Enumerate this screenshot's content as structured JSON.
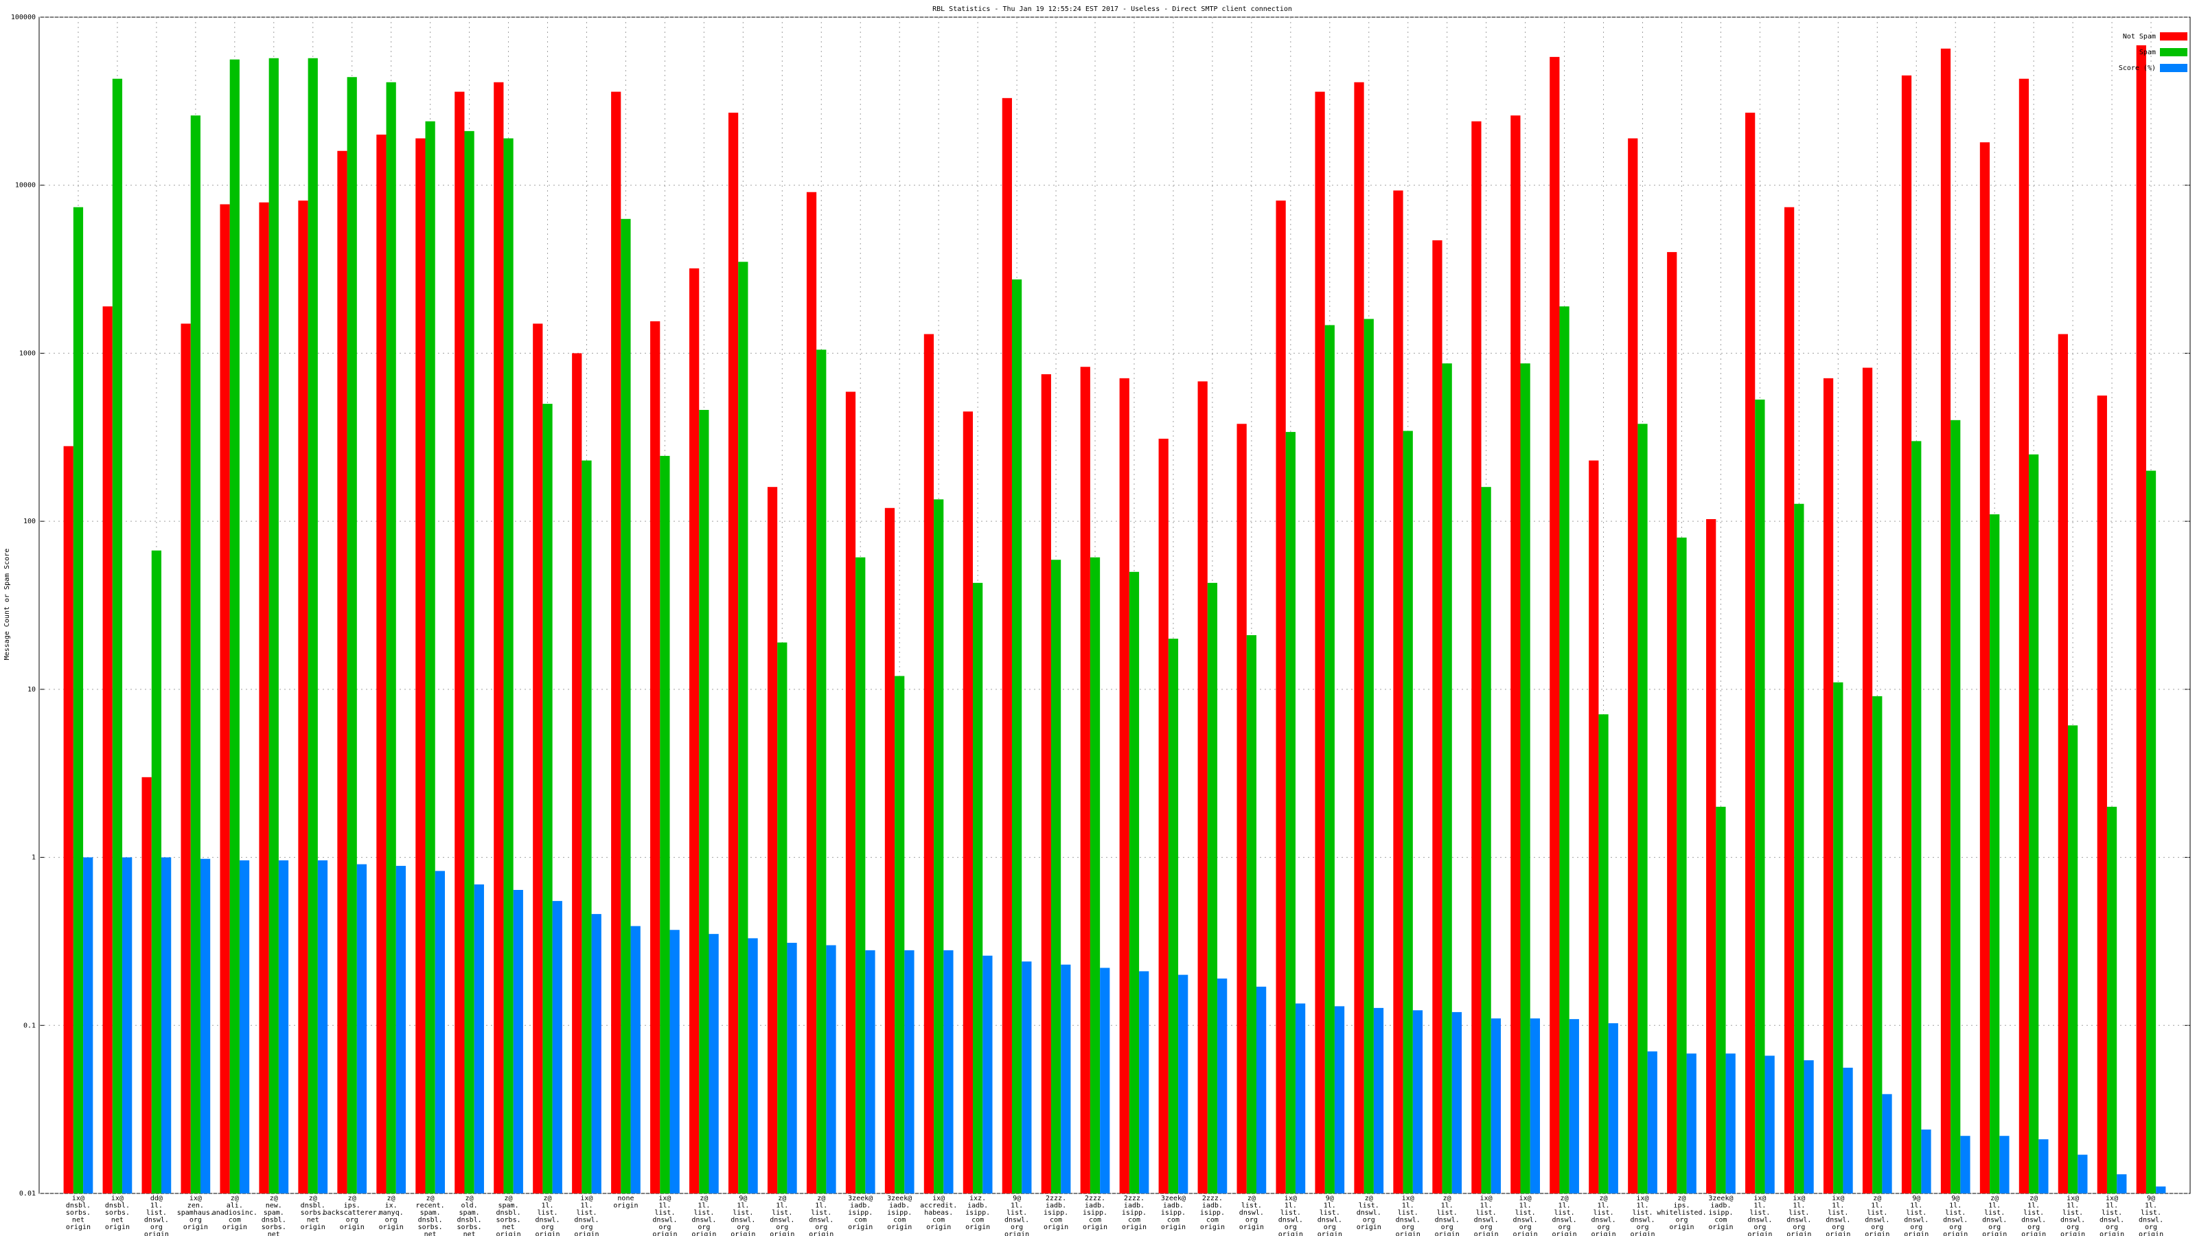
{
  "chart_data": {
    "type": "bar",
    "title": "RBL Statistics - Thu Jan 19 12:55:24 EST 2017 - Useless - Direct SMTP client connection",
    "y_label": "Message Count or Spam Score",
    "log_scale": true,
    "grid": true,
    "legend": "top-right",
    "ylim": [
      0.01,
      100000
    ],
    "yticks": [
      0.01,
      0.1,
      1,
      10,
      100,
      1000,
      10000,
      100000
    ],
    "categories": [
      [
        "ix@",
        "dnsbl.",
        "sorbs.",
        "net",
        "origin"
      ],
      [
        "ix@",
        "dnsbl.",
        "sorbs.",
        "net",
        "origin"
      ],
      [
        "dd@",
        "1l.",
        "list.",
        "dnswl.",
        "org",
        "origin"
      ],
      [
        "ix@",
        "zen.",
        "spamhaus.",
        "org",
        "origin"
      ],
      [
        "z@",
        "ali.",
        "anadiosinc.",
        "com",
        "origin"
      ],
      [
        "z@",
        "new.",
        "spam.",
        "dnsbl.",
        "sorbs.",
        "net",
        "origin"
      ],
      [
        "z@",
        "dnsbl.",
        "sorbs.",
        "net",
        "origin"
      ],
      [
        "z@",
        "ips.",
        "backscatterer.",
        "org",
        "origin"
      ],
      [
        "z@",
        "ix.",
        "manyq.",
        "org",
        "origin"
      ],
      [
        "z@",
        "recent.",
        "spam.",
        "dnsbl.",
        "sorbs.",
        "net",
        "origin"
      ],
      [
        "z@",
        "old.",
        "spam.",
        "dnsbl.",
        "sorbs.",
        "net",
        "origin"
      ],
      [
        "z@",
        "spam.",
        "dnsbl.",
        "sorbs.",
        "net",
        "origin"
      ],
      [
        "z@",
        "1l.",
        "list.",
        "dnswl.",
        "org",
        "origin"
      ],
      [
        "ix@",
        "1l.",
        "list.",
        "dnswl.",
        "org",
        "origin"
      ],
      [
        "none",
        "origin"
      ],
      [
        "ix@",
        "1l.",
        "list.",
        "dnswl.",
        "org",
        "origin"
      ],
      [
        "z@",
        "1l.",
        "list.",
        "dnswl.",
        "org",
        "origin"
      ],
      [
        "9@",
        "1l.",
        "list.",
        "dnswl.",
        "org",
        "origin"
      ],
      [
        "z@",
        "1l.",
        "list.",
        "dnswl.",
        "org",
        "origin"
      ],
      [
        "z@",
        "1l.",
        "list.",
        "dnswl.",
        "org",
        "origin"
      ],
      [
        "3zeek@",
        "iadb.",
        "isipp.",
        "com",
        "origin"
      ],
      [
        "3zeek@",
        "iadb.",
        "isipp.",
        "com",
        "origin"
      ],
      [
        "ix@",
        "accredit.",
        "habeas.",
        "com",
        "origin"
      ],
      [
        "ixz.",
        "iadb.",
        "isipp.",
        "com",
        "origin"
      ],
      [
        "9@",
        "1l.",
        "list.",
        "dnswl.",
        "org",
        "origin"
      ],
      [
        "2zzz.",
        "iadb.",
        "isipp.",
        "com",
        "origin"
      ],
      [
        "2zzz.",
        "iadb.",
        "isipp.",
        "com",
        "origin"
      ],
      [
        "2zzz.",
        "iadb.",
        "isipp.",
        "com",
        "origin"
      ],
      [
        "3zeek@",
        "iadb.",
        "isipp.",
        "com",
        "origin"
      ],
      [
        "2zzz.",
        "iadb.",
        "isipp.",
        "com",
        "origin"
      ],
      [
        "z@",
        "list.",
        "dnswl.",
        "org",
        "origin"
      ],
      [
        "ix@",
        "1l.",
        "list.",
        "dnswl.",
        "org",
        "origin"
      ],
      [
        "9@",
        "1l.",
        "list.",
        "dnswl.",
        "org",
        "origin"
      ],
      [
        "z@",
        "list.",
        "dnswl.",
        "org",
        "origin"
      ],
      [
        "ix@",
        "1l.",
        "list.",
        "dnswl.",
        "org",
        "origin"
      ],
      [
        "z@",
        "1l.",
        "list.",
        "dnswl.",
        "org",
        "origin"
      ],
      [
        "ix@",
        "1l.",
        "list.",
        "dnswl.",
        "org",
        "origin"
      ],
      [
        "ix@",
        "1l.",
        "list.",
        "dnswl.",
        "org",
        "origin"
      ],
      [
        "z@",
        "1l.",
        "list.",
        "dnswl.",
        "org",
        "origin"
      ],
      [
        "z@",
        "1l.",
        "list.",
        "dnswl.",
        "org",
        "origin"
      ],
      [
        "ix@",
        "1l.",
        "list.",
        "dnswl.",
        "org",
        "origin"
      ],
      [
        "z@",
        "ips.",
        "whitelisted.",
        "org",
        "origin"
      ],
      [
        "3zeek@",
        "iadb.",
        "isipp.",
        "com",
        "origin"
      ],
      [
        "ix@",
        "1l.",
        "list.",
        "dnswl.",
        "org",
        "origin"
      ],
      [
        "ix@",
        "1l.",
        "list.",
        "dnswl.",
        "org",
        "origin"
      ],
      [
        "ix@",
        "1l.",
        "list.",
        "dnswl.",
        "org",
        "origin"
      ],
      [
        "z@",
        "1l.",
        "list.",
        "dnswl.",
        "org",
        "origin"
      ],
      [
        "9@",
        "1l.",
        "list.",
        "dnswl.",
        "org",
        "origin"
      ],
      [
        "9@",
        "1l.",
        "list.",
        "dnswl.",
        "org",
        "origin"
      ],
      [
        "z@",
        "1l.",
        "list.",
        "dnswl.",
        "org",
        "origin"
      ],
      [
        "z@",
        "1l.",
        "list.",
        "dnswl.",
        "org",
        "origin"
      ],
      [
        "ix@",
        "1l.",
        "list.",
        "dnswl.",
        "org",
        "origin"
      ],
      [
        "ix@",
        "1l.",
        "list.",
        "dnswl.",
        "org",
        "origin"
      ],
      [
        "9@",
        "1l.",
        "list.",
        "dnswl.",
        "org",
        "origin"
      ]
    ],
    "series": [
      {
        "name": "Not Spam",
        "color": "#ff0000",
        "values": [
          280,
          1900,
          3,
          1500,
          7700,
          7900,
          8100,
          16000,
          20000,
          19000,
          36000,
          41000,
          1500,
          1000,
          36000,
          1550,
          3200,
          27000,
          160,
          9100,
          590,
          120,
          1300,
          450,
          33000,
          750,
          830,
          710,
          310,
          680,
          380,
          8100,
          36000,
          41000,
          9300,
          4700,
          24000,
          26000,
          58000,
          230,
          19000,
          4000,
          103,
          27000,
          7400,
          710,
          820,
          45000,
          65000,
          18000,
          43000,
          1300,
          560,
          68000
        ]
      },
      {
        "name": "Spam",
        "color": "#00c000",
        "values": [
          7400,
          43000,
          67,
          26000,
          56000,
          57000,
          57000,
          44000,
          41000,
          24000,
          21000,
          19000,
          500,
          230,
          6300,
          245,
          460,
          3500,
          19,
          1050,
          61,
          12,
          135,
          43,
          2750,
          59,
          61,
          50,
          20,
          43,
          21,
          340,
          1470,
          1600,
          345,
          870,
          160,
          870,
          1900,
          7.1,
          380,
          80,
          2,
          530,
          127,
          11,
          9.1,
          300,
          400,
          110,
          250,
          6.1,
          2,
          200
        ]
      },
      {
        "name": "Score (%)",
        "color": "#0080ff",
        "values": [
          1,
          1,
          1,
          0.98,
          0.96,
          0.96,
          0.96,
          0.91,
          0.89,
          0.83,
          0.69,
          0.64,
          0.55,
          0.46,
          0.39,
          0.37,
          0.35,
          0.33,
          0.31,
          0.3,
          0.28,
          0.28,
          0.28,
          0.26,
          0.24,
          0.23,
          0.22,
          0.21,
          0.2,
          0.19,
          0.17,
          0.135,
          0.13,
          0.127,
          0.123,
          0.12,
          0.11,
          0.11,
          0.109,
          0.103,
          0.07,
          0.068,
          0.068,
          0.066,
          0.062,
          0.056,
          0.039,
          0.024,
          0.022,
          0.022,
          0.021,
          0.017,
          0.013,
          0.011
        ]
      }
    ]
  }
}
